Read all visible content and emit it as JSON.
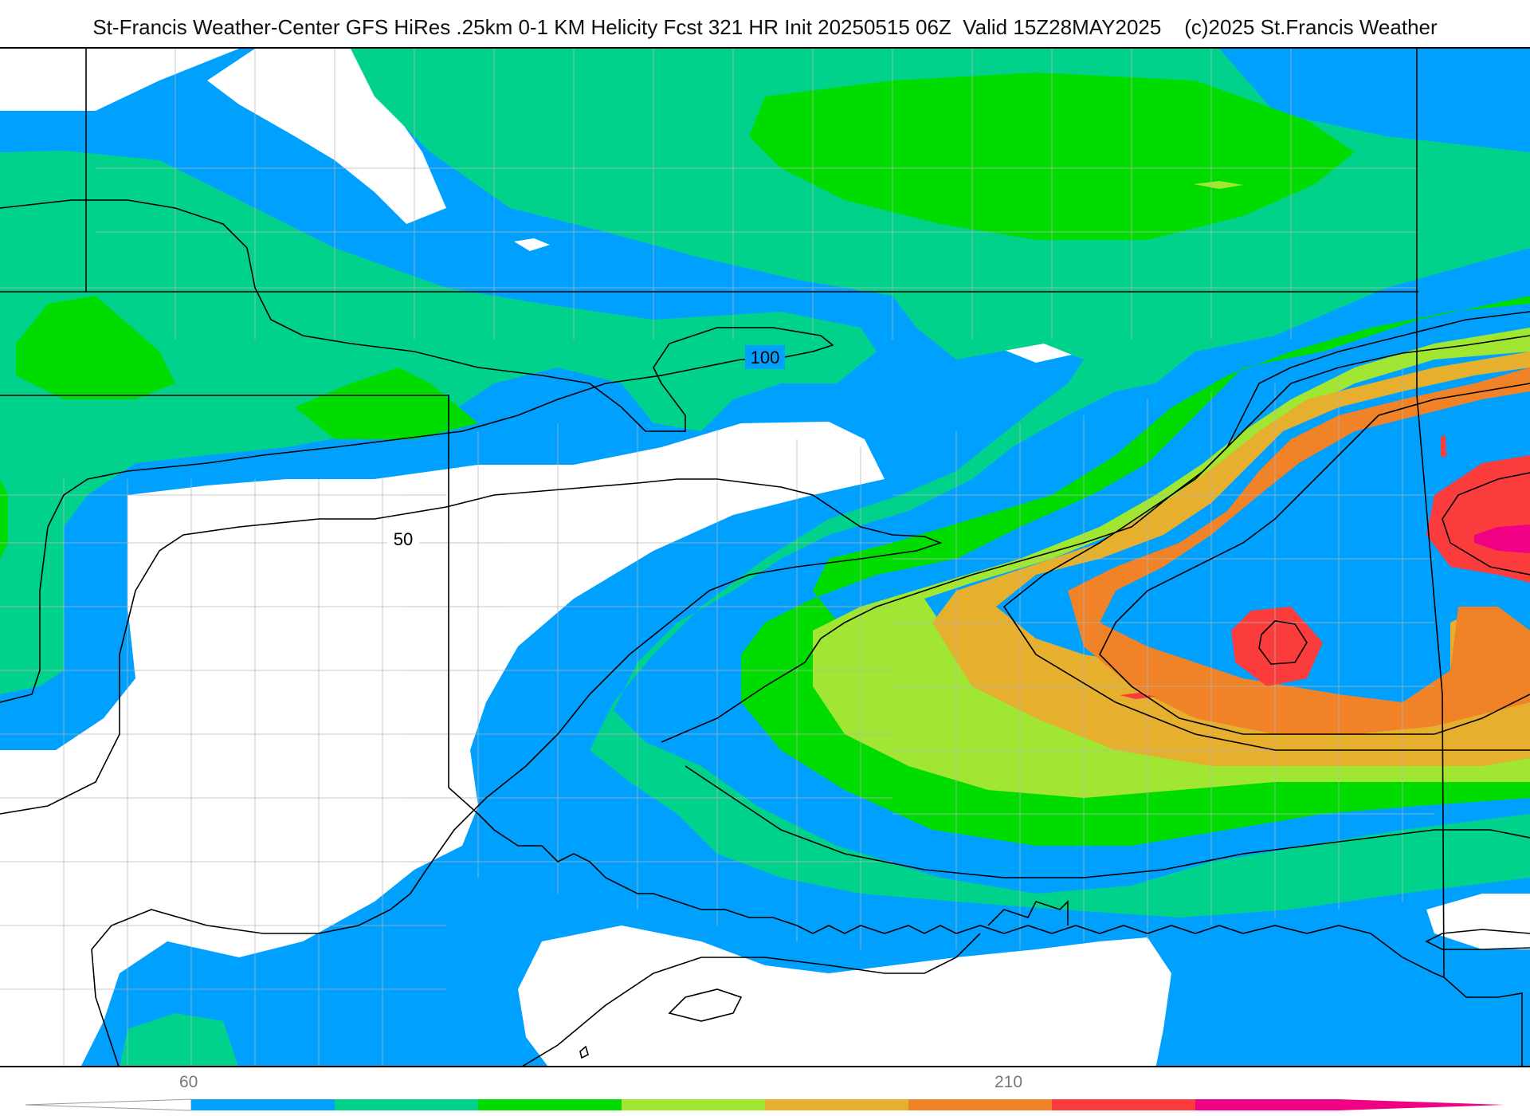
{
  "header": {
    "title": "St-Francis Weather-Center GFS HiRes .25km 0-1 KM Helicity Fcst 321 HR Init 20250515 06Z  Valid 15Z28MAY2025    (c)2025 St.Francis Weather"
  },
  "map": {
    "contour_labels": [
      "100",
      "50"
    ],
    "palette": {
      "blue": "#00a0ff",
      "teal": "#00d28c",
      "green": "#00dc00",
      "lime": "#a0e632",
      "gold": "#e6af2d",
      "orange": "#f08228",
      "red": "#fa3c3c",
      "magenta": "#f00082"
    }
  },
  "legend": {
    "tick_labels": [
      "60",
      "210"
    ],
    "colors": [
      "#00a0ff",
      "#00d28c",
      "#00dc00",
      "#a0e632",
      "#e6af2d",
      "#f08228",
      "#fa3c3c",
      "#f00082"
    ]
  }
}
